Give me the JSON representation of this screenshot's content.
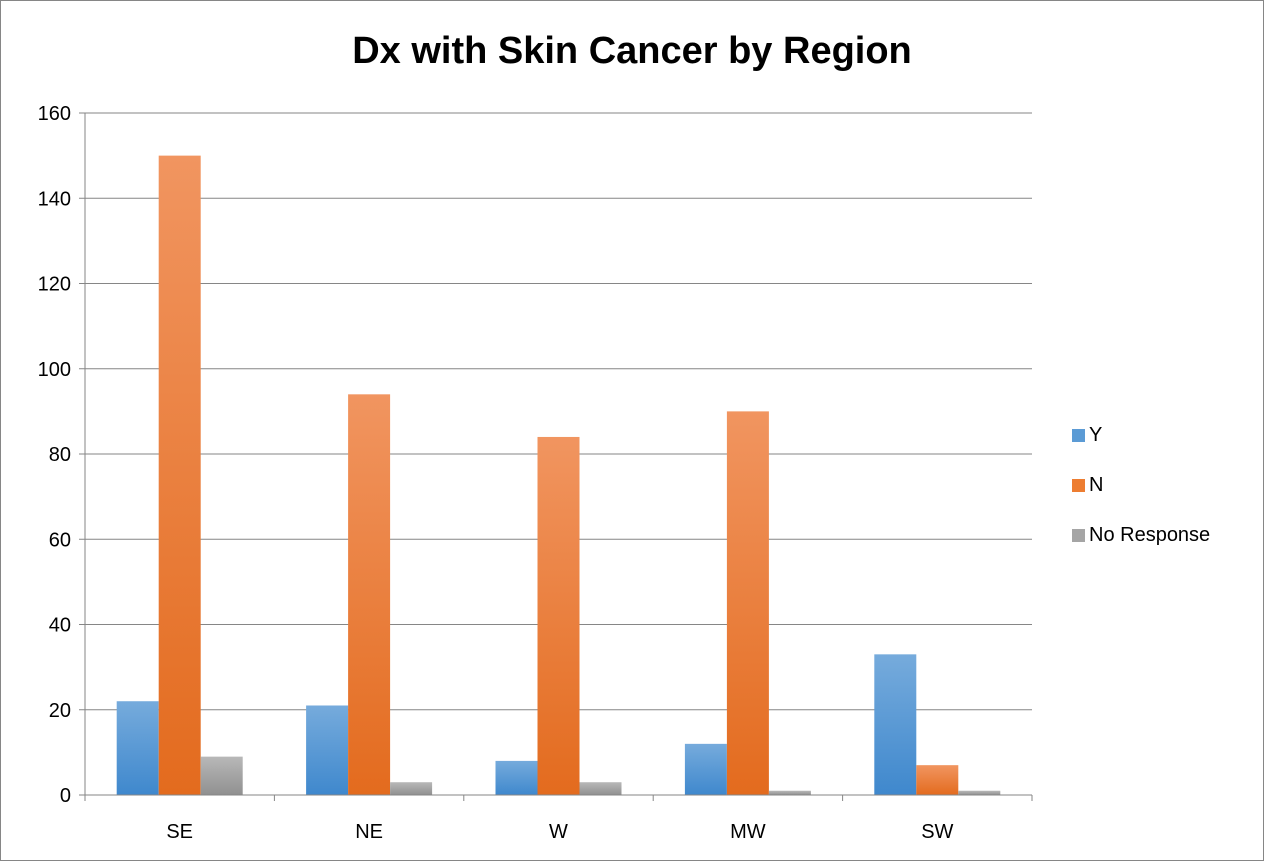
{
  "chart_data": {
    "type": "bar",
    "title": "Dx with Skin Cancer by Region",
    "xlabel": "",
    "ylabel": "",
    "categories": [
      "SE",
      "NE",
      "W",
      "MW",
      "SW"
    ],
    "ylim": [
      0,
      160
    ],
    "yticks": [
      0,
      20,
      40,
      60,
      80,
      100,
      120,
      140,
      160
    ],
    "grid": true,
    "legend_position": "right",
    "series": [
      {
        "name": "Y",
        "values": [
          22,
          21,
          8,
          12,
          33
        ],
        "color": "#5B9BD5"
      },
      {
        "name": "N",
        "values": [
          150,
          94,
          84,
          90,
          7
        ],
        "color": "#ED7D31"
      },
      {
        "name": "No Response",
        "values": [
          9,
          3,
          3,
          1,
          1
        ],
        "color": "#A5A5A5"
      }
    ]
  }
}
